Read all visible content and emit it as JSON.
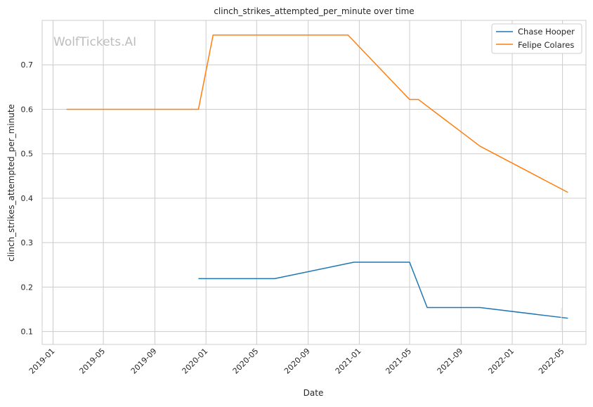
{
  "chart_data": {
    "type": "line",
    "title": "clinch_strikes_attempted_per_minute over time",
    "xlabel": "Date",
    "ylabel": "clinch_strikes_attempted_per_minute",
    "watermark": "WolfTickets.AI",
    "x_ticks": [
      "2019-01",
      "2019-05",
      "2019-09",
      "2020-01",
      "2020-05",
      "2020-09",
      "2021-01",
      "2021-05",
      "2021-09",
      "2022-01",
      "2022-05"
    ],
    "y_ticks": [
      "0.1",
      "0.2",
      "0.3",
      "0.4",
      "0.5",
      "0.6",
      "0.7"
    ],
    "xlim": [
      "2018-12-06",
      "2022-06-26"
    ],
    "ylim": [
      0.071,
      0.8
    ],
    "grid": true,
    "legend_position": "top-right",
    "series": [
      {
        "name": "Chase Hooper",
        "color": "#1f77b4",
        "points": [
          [
            "2019-12-14",
            0.219
          ],
          [
            "2020-06-13",
            0.219
          ],
          [
            "2020-12-19",
            0.256
          ],
          [
            "2021-05-01",
            0.256
          ],
          [
            "2021-06-12",
            0.154
          ],
          [
            "2021-10-16",
            0.154
          ],
          [
            "2022-05-14",
            0.13
          ]
        ]
      },
      {
        "name": "Felipe Colares",
        "color": "#ff7f0e",
        "points": [
          [
            "2019-02-02",
            0.6
          ],
          [
            "2019-12-14",
            0.6
          ],
          [
            "2020-01-18",
            0.767
          ],
          [
            "2020-12-05",
            0.767
          ],
          [
            "2021-05-01",
            0.622
          ],
          [
            "2021-05-22",
            0.622
          ],
          [
            "2021-10-16",
            0.517
          ],
          [
            "2022-05-14",
            0.413
          ]
        ]
      }
    ]
  }
}
